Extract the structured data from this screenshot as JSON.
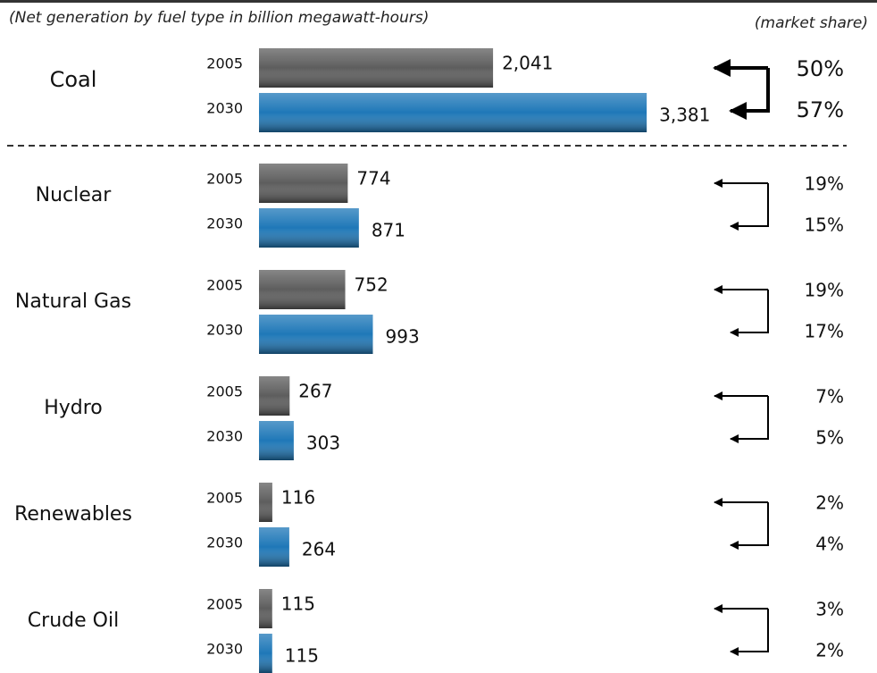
{
  "chart_data": {
    "type": "bar",
    "orientation": "horizontal",
    "subtitle": "(Net generation by fuel type in billion megawatt-hours)",
    "categories": [
      "Coal",
      "Nuclear",
      "Natural Gas",
      "Hydro",
      "Renewables",
      "Crude Oil"
    ],
    "series": [
      {
        "name": "2005",
        "color": "#5e5e5e",
        "values": [
          2041,
          774,
          752,
          267,
          116,
          115
        ],
        "value_labels": [
          "2,041",
          "774",
          "752",
          "267",
          "116",
          "115"
        ]
      },
      {
        "name": "2030",
        "color": "#1f78b8",
        "values": [
          3381,
          871,
          993,
          303,
          264,
          115
        ],
        "value_labels": [
          "3,381",
          "871",
          "993",
          "303",
          "264",
          "115"
        ]
      }
    ],
    "market_share": {
      "label": "(market share)",
      "series": [
        {
          "name": "2005",
          "values": [
            50,
            19,
            19,
            7,
            2,
            3
          ],
          "value_labels": [
            "50%",
            "19%",
            "19%",
            "7%",
            "2%",
            "3%"
          ]
        },
        {
          "name": "2030",
          "values": [
            57,
            15,
            17,
            5,
            4,
            2
          ],
          "value_labels": [
            "57%",
            "15%",
            "17%",
            "5%",
            "4%",
            "2%"
          ]
        }
      ]
    }
  }
}
